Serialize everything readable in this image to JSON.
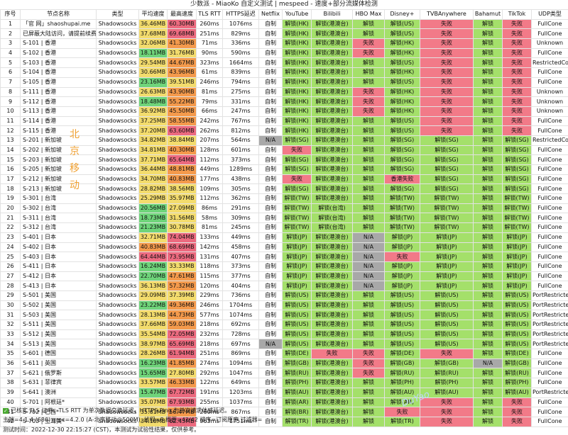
{
  "title": "少数派 - MiaoKo 自定义测试 | mespeed - 速度+部分流媒体检测",
  "columns": [
    "序号",
    "节点名称",
    "类型",
    "平均速度",
    "最高速度",
    "TLS RTT",
    "HTTPS延迟",
    "Netflix",
    "YouTube",
    "Bilibili",
    "HBO Max",
    "Disney+",
    "TVBAnywhere",
    "Bahamut",
    "TikTok",
    "UDP类型"
  ],
  "rows": [
    [
      "1",
      "「官 网」shaoshupai.me",
      "Shadowsocks",
      "36.46MB",
      "60.30MB",
      "260ms",
      "1076ms",
      "自制",
      "解锁(HK)",
      "解锁(港澳台)",
      "解锁",
      "解锁(US)",
      "失败",
      "解锁",
      "失败",
      "FullCone"
    ],
    [
      "2",
      "已屏蔽大陆访问，请提前续费",
      "Shadowsocks",
      "37.68MB",
      "69.68MB",
      "251ms",
      "829ms",
      "自制",
      "解锁(HK)",
      "解锁(港澳台)",
      "解锁",
      "解锁(US)",
      "失败",
      "解锁",
      "失败",
      "FullCone"
    ],
    [
      "3",
      "S-101 | 香港",
      "Shadowsocks",
      "32.06MB",
      "41.30MB",
      "71ms",
      "336ms",
      "自制",
      "解锁(HK)",
      "解锁(港澳台)",
      "失败",
      "解锁(HK)",
      "失败",
      "解锁",
      "失败",
      "Unknown"
    ],
    [
      "4",
      "S-102 | 香港",
      "Shadowsocks",
      "18.11MB",
      "31.76MB",
      "90ms",
      "590ms",
      "自制",
      "解锁(HK)",
      "解锁(港澳台)",
      "失败",
      "解锁(HK)",
      "失败",
      "解锁",
      "失败",
      "FullCone"
    ],
    [
      "5",
      "S-103 | 香港",
      "Shadowsocks",
      "29.54MB",
      "44.67MB",
      "323ms",
      "1664ms",
      "自制",
      "解锁(HK)",
      "解锁(港澳台)",
      "解锁",
      "解锁(US)",
      "失败",
      "解锁",
      "失败",
      "RestrictedCone"
    ],
    [
      "6",
      "S-104 | 香港",
      "Shadowsocks",
      "30.66MB",
      "43.96MB",
      "61ms",
      "839ms",
      "自制",
      "解锁(HK)",
      "解锁(港澳台)",
      "解锁",
      "解锁(HK)",
      "失败",
      "解锁",
      "失败",
      "FullCone"
    ],
    [
      "7",
      "S-105 | 香港",
      "Shadowsocks",
      "23.16MB",
      "39.51MB",
      "246ms",
      "794ms",
      "自制",
      "解锁(HK)",
      "解锁(港澳台)",
      "解锁",
      "解锁(US)",
      "失败",
      "解锁",
      "失败",
      "FullCone"
    ],
    [
      "8",
      "S-111 | 香港",
      "Shadowsocks",
      "26.63MB",
      "43.90MB",
      "81ms",
      "275ms",
      "自制",
      "解锁(HK)",
      "解锁(港澳台)",
      "失败",
      "解锁(HK)",
      "失败",
      "解锁",
      "失败",
      "Unknown"
    ],
    [
      "9",
      "S-112 | 香港",
      "Shadowsocks",
      "18.48MB",
      "55.22MB",
      "79ms",
      "331ms",
      "自制",
      "解锁(HK)",
      "解锁(港澳台)",
      "失败",
      "解锁(HK)",
      "失败",
      "解锁",
      "失败",
      "Unknown"
    ],
    [
      "10",
      "S-113 | 香港",
      "Shadowsocks",
      "36.92MB",
      "45.50MB",
      "66ms",
      "247ms",
      "自制",
      "解锁(HK)",
      "解锁(港澳台)",
      "失败",
      "解锁(HK)",
      "失败",
      "解锁",
      "失败",
      "Unknown"
    ],
    [
      "11",
      "S-114 | 香港",
      "Shadowsocks",
      "37.25MB",
      "58.55MB",
      "242ms",
      "767ms",
      "自制",
      "解锁(HK)",
      "解锁(港澳台)",
      "解锁",
      "解锁(US)",
      "失败",
      "解锁",
      "失败",
      "FullCone"
    ],
    [
      "12",
      "S-115 | 香港",
      "Shadowsocks",
      "37.20MB",
      "63.60MB",
      "262ms",
      "812ms",
      "自制",
      "解锁(HK)",
      "解锁(港澳台)",
      "解锁",
      "解锁(US)",
      "失败",
      "解锁",
      "失败",
      "FullCone"
    ],
    [
      "13",
      "S-201 | 新加坡",
      "Shadowsocks",
      "34.82MB",
      "38.84MB",
      "207ms",
      "564ms",
      "N/A",
      "解锁(SG)",
      "解锁(港澳台)",
      "解锁",
      "解锁(SG)",
      "解锁(SG)",
      "解锁",
      "解锁(SG)",
      "RestrictedCone"
    ],
    [
      "14",
      "S-202 | 新加坡",
      "Shadowsocks",
      "34.81MB",
      "40.30MB",
      "128ms",
      "601ms",
      "自制",
      "失败",
      "解锁(港澳台)",
      "解锁",
      "解锁(SG)",
      "解锁(SG)",
      "解锁",
      "解锁(SG)",
      "FullCone"
    ],
    [
      "15",
      "S-203 | 新加坡",
      "Shadowsocks",
      "37.71MB",
      "65.64MB",
      "112ms",
      "373ms",
      "自制",
      "解锁(SG)",
      "解锁(港澳台)",
      "解锁",
      "解锁(SG)",
      "解锁(SG)",
      "解锁",
      "解锁(SG)",
      "FullCone"
    ],
    [
      "16",
      "S-205 | 新加坡",
      "Shadowsocks",
      "36.44MB",
      "48.81MB",
      "449ms",
      "1289ms",
      "自制",
      "解锁(SG)",
      "解锁(港澳台)",
      "解锁",
      "解锁(SG)",
      "解锁(SG)",
      "解锁",
      "解锁(SG)",
      "FullCone"
    ],
    [
      "17",
      "S-212 | 新加坡",
      "Shadowsocks",
      "34.70MB",
      "40.83MB",
      "177ms",
      "438ms",
      "自制",
      "失败",
      "解锁(港澳台)",
      "解锁",
      "香港失败",
      "解锁(SG)",
      "解锁",
      "解锁(SG)",
      "FullCone"
    ],
    [
      "18",
      "S-213 | 新加坡",
      "Shadowsocks",
      "28.82MB",
      "38.56MB",
      "109ms",
      "305ms",
      "自制",
      "解锁(SG)",
      "解锁(港澳台)",
      "解锁",
      "解锁(SG)",
      "解锁(SG)",
      "解锁",
      "解锁(SG)",
      "FullCone"
    ],
    [
      "19",
      "S-301 | 台湾",
      "Shadowsocks",
      "25.29MB",
      "35.97MB",
      "112ms",
      "362ms",
      "自制",
      "解锁(TW)",
      "解锁(港澳台)",
      "解锁",
      "解锁(TW)",
      "解锁(TW)",
      "解锁",
      "解锁(TW)",
      "FullCone"
    ],
    [
      "20",
      "S-302 | 台湾",
      "Shadowsocks",
      "20.56MB",
      "27.09MB",
      "86ms",
      "291ms",
      "自制",
      "解锁(TW)",
      "解锁(台湾)",
      "解锁",
      "解锁(TW)",
      "解锁(TW)",
      "解锁",
      "解锁(TW)",
      "FullCone"
    ],
    [
      "21",
      "S-311 | 台湾",
      "Shadowsocks",
      "18.73MB",
      "31.56MB",
      "58ms",
      "309ms",
      "自制",
      "解锁(TW)",
      "解锁(台湾)",
      "解锁",
      "解锁(TW)",
      "解锁(TW)",
      "解锁",
      "解锁(TW)",
      "FullCone"
    ],
    [
      "22",
      "S-312 | 台湾",
      "Shadowsocks",
      "21.23MB",
      "30.78MB",
      "81ms",
      "245ms",
      "自制",
      "解锁(TW)",
      "解锁(台湾)",
      "解锁",
      "解锁(TW)",
      "解锁(TW)",
      "解锁",
      "解锁(TW)",
      "FullCone"
    ],
    [
      "23",
      "S-401 | 日本",
      "Shadowsocks",
      "32.71MB",
      "74.04MB",
      "133ms",
      "449ms",
      "自制",
      "解锁(JP)",
      "解锁(港澳台)",
      "N/A",
      "解锁(JP)",
      "解锁(JP)",
      "解锁",
      "解锁(JP)",
      "FullCone"
    ],
    [
      "24",
      "S-402 | 日本",
      "Shadowsocks",
      "40.83MB",
      "68.69MB",
      "142ms",
      "458ms",
      "自制",
      "解锁(JP)",
      "解锁(港澳台)",
      "N/A",
      "解锁(JP)",
      "解锁(JP)",
      "解锁",
      "解锁(JP)",
      "FullCone"
    ],
    [
      "25",
      "S-403 | 日本",
      "Shadowsocks",
      "64.44MB",
      "73.95MB",
      "131ms",
      "407ms",
      "自制",
      "解锁(JP)",
      "解锁(港澳台)",
      "N/A",
      "失败",
      "解锁(JP)",
      "解锁",
      "解锁(JP)",
      "FullCone"
    ],
    [
      "26",
      "S-411 | 日本",
      "Shadowsocks",
      "16.24MB",
      "33.33MB",
      "118ms",
      "373ms",
      "自制",
      "解锁(JP)",
      "解锁(港澳台)",
      "N/A",
      "解锁(JP)",
      "解锁(JP)",
      "解锁",
      "解锁(JP)",
      "FullCone"
    ],
    [
      "27",
      "S-412 | 日本",
      "Shadowsocks",
      "22.70MB",
      "47.61MB",
      "115ms",
      "377ms",
      "自制",
      "解锁(JP)",
      "解锁(港澳台)",
      "N/A",
      "解锁(JP)",
      "解锁(JP)",
      "解锁",
      "解锁(JP)",
      "FullCone"
    ],
    [
      "28",
      "S-413 | 日本",
      "Shadowsocks",
      "36.13MB",
      "57.32MB",
      "120ms",
      "404ms",
      "自制",
      "解锁(JP)",
      "解锁(港澳台)",
      "N/A",
      "解锁(JP)",
      "解锁(JP)",
      "解锁",
      "解锁(JP)",
      "FullCone"
    ],
    [
      "29",
      "S-501 | 美国",
      "Shadowsocks",
      "29.09MB",
      "37.39MB",
      "229ms",
      "736ms",
      "自制",
      "解锁(US)",
      "解锁(港澳台)",
      "解锁",
      "解锁(US)",
      "解锁(US)",
      "解锁",
      "解锁(US)",
      "PortRestrictedCone"
    ],
    [
      "30",
      "S-502 | 美国",
      "Shadowsocks",
      "23.22MB",
      "49.36MB",
      "246ms",
      "1704ms",
      "自制",
      "解锁(US)",
      "解锁(港澳台)",
      "解锁",
      "解锁(US)",
      "解锁(US)",
      "解锁",
      "解锁(US)",
      "PortRestrictedCone"
    ],
    [
      "31",
      "S-503 | 美国",
      "Shadowsocks",
      "28.13MB",
      "44.73MB",
      "577ms",
      "1074ms",
      "自制",
      "解锁(US)",
      "解锁(港澳台)",
      "解锁",
      "解锁(US)",
      "解锁(US)",
      "解锁",
      "解锁(US)",
      "PortRestrictedCone"
    ],
    [
      "32",
      "S-511 | 美国",
      "Shadowsocks",
      "37.66MB",
      "59.03MB",
      "218ms",
      "692ms",
      "自制",
      "解锁(US)",
      "解锁(港澳台)",
      "解锁",
      "解锁(US)",
      "解锁(US)",
      "解锁",
      "解锁(US)",
      "PortRestrictedCone"
    ],
    [
      "33",
      "S-512 | 美国",
      "Shadowsocks",
      "35.54MB",
      "72.05MB",
      "232ms",
      "728ms",
      "自制",
      "解锁(US)",
      "解锁(港澳台)",
      "解锁",
      "解锁(US)",
      "解锁(US)",
      "解锁",
      "解锁(US)",
      "PortRestrictedCone"
    ],
    [
      "34",
      "S-513 | 美国",
      "Shadowsocks",
      "38.97MB",
      "65.69MB",
      "218ms",
      "697ms",
      "N/A",
      "解锁(US)",
      "解锁(港澳台)",
      "解锁",
      "解锁(US)",
      "解锁(US)",
      "解锁",
      "解锁(US)",
      "PortRestrictedCone"
    ],
    [
      "35",
      "S-601 | 德国",
      "Shadowsocks",
      "28.26MB",
      "61.94MB",
      "251ms",
      "869ms",
      "自制",
      "解锁(DE)",
      "失败",
      "失败",
      "解锁(DE)",
      "失败",
      "解锁",
      "解锁(DE)",
      "FullCone"
    ],
    [
      "36",
      "S-611 | 英国",
      "Shadowsocks",
      "16.23MB",
      "41.85MB",
      "274ms",
      "1094ms",
      "自制",
      "解锁(GB)",
      "解锁(港澳台)",
      "失败",
      "解锁(GB)",
      "解锁(GB)",
      "N/A",
      "解锁(GB)",
      "FullCone"
    ],
    [
      "37",
      "S-621 | 俄罗斯",
      "Shadowsocks",
      "15.65MB",
      "27.80MB",
      "292ms",
      "1047ms",
      "自制",
      "解锁(RU)",
      "解锁(港澳台)",
      "失败",
      "解锁(RU)",
      "解锁(RU)",
      "解锁",
      "解锁(RU)",
      "FullCone"
    ],
    [
      "38",
      "S-631 | 菲律宾",
      "Shadowsocks",
      "33.57MB",
      "46.33MB",
      "122ms",
      "649ms",
      "自制",
      "解锁(PH)",
      "解锁(港澳台)",
      "解锁",
      "解锁(PH)",
      "解锁(PH)",
      "解锁",
      "解锁(PH)",
      "FullCone"
    ],
    [
      "39",
      "S-641 | 澳洲",
      "Shadowsocks",
      "15.47MB",
      "67.72MB",
      "191ms",
      "1203ms",
      "自制",
      "解锁(AU)",
      "解锁(港澳台)",
      "解锁",
      "解锁(AU)",
      "解锁(AU)",
      "解锁",
      "解锁(AU)",
      "PortRestrictedCone"
    ],
    [
      "40",
      "S-701 | 阿根廷*",
      "Shadowsocks",
      "35.07MB",
      "67.93MB",
      "255ms",
      "1037ms",
      "自制",
      "解锁(AR)",
      "解锁(港澳台)",
      "解锁",
      "解锁(AR)",
      "失败",
      "解锁",
      "失败",
      "FullCone"
    ],
    [
      "41",
      "S-702 | 巴西*",
      "Shadowsocks",
      "35.61MB",
      "56.47MB",
      "260ms",
      "867ms",
      "自制",
      "解锁(BR)",
      "解锁(港澳台)",
      "解锁",
      "失败",
      "失败",
      "解锁",
      "失败",
      "FullCone"
    ],
    [
      "42",
      "S-703 | 土耳其*",
      "Shadowsocks",
      "34.18MB",
      "62.43MB",
      "963ms",
      "1751ms",
      "自制",
      "解锁(TR)",
      "解锁(港澳台)",
      "解锁",
      "解锁(TR)",
      "失败",
      "解锁",
      "失败",
      "FullCone"
    ]
  ],
  "speed_colors": {
    "low": "#6fd47a",
    "mid": "#f3dc6d",
    "high": "#f49a4c",
    "top": "#ec6a7f"
  },
  "status_colors": {
    "ok": "#a4e06a",
    "fail": "#f27a88",
    "na": "#a8a8a8"
  },
  "watermark": "北京移动",
  "watermark_chars": [
    "北",
    "京",
    "移",
    "动"
  ],
  "brand_mark": "DuYao",
  "footer": {
    "check_icon": "check-icon",
    "line1": "已核实 TLS 证书。TLS RTT 为单次数据交换延迟，HTTPS Ping 为单次请求体感延迟。",
    "line2": "主端=4.1.4 (686) grpc=4.2.0 (A-北京移动@500M), 线程=8 概要=42/42 排序=订阅原序 过滤器=",
    "line3": "测试时间：2022-12-30 22:15:27 (CST)，本测试为试验性结果，仅供参考。"
  }
}
